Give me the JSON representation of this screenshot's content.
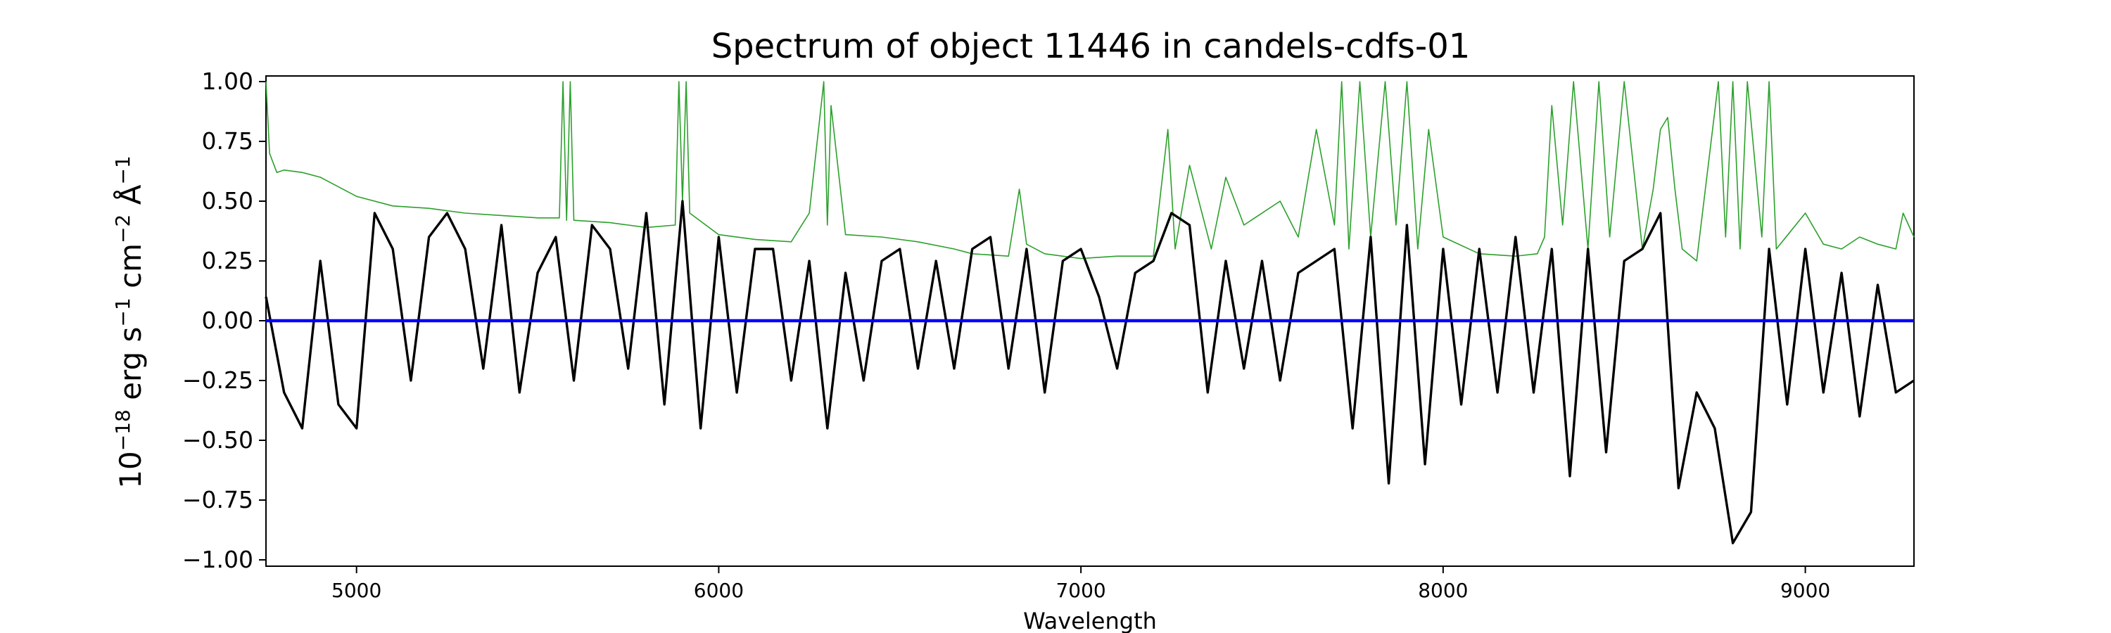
{
  "chart_data": {
    "type": "line",
    "title": "Spectrum of object 11446 in candels-cdfs-01",
    "xlabel": "Wavelength",
    "ylabel": {
      "base": "10",
      "exp1": "−18",
      "unit1": " erg s",
      "exp2": "−1",
      "unit2": " cm",
      "exp3": "−2",
      "unit3": " Å",
      "exp4": "−1"
    },
    "xlim": [
      4750,
      9300
    ],
    "ylim": [
      -1.0,
      1.0
    ],
    "x_ticks": [
      5000,
      6000,
      7000,
      8000,
      9000
    ],
    "x_tick_labels": [
      "5000",
      "6000",
      "7000",
      "8000",
      "9000"
    ],
    "y_ticks": [
      1.0,
      0.75,
      0.5,
      0.25,
      0.0,
      -0.25,
      -0.5,
      -0.75,
      -1.0
    ],
    "y_tick_labels": [
      "1.00",
      "0.75",
      "0.50",
      "0.25",
      "0.00",
      "−0.25",
      "−0.50",
      "−0.75",
      "−1.00"
    ],
    "grid": false,
    "colors": {
      "flux": "#000000",
      "error": "#2ca02c",
      "zero": "#0000ff"
    },
    "series": [
      {
        "key": "flux",
        "x": [
          4750,
          4800,
          4850,
          4900,
          4950,
          5000,
          5050,
          5100,
          5150,
          5200,
          5250,
          5300,
          5350,
          5400,
          5450,
          5500,
          5550,
          5600,
          5650,
          5700,
          5750,
          5800,
          5850,
          5900,
          5950,
          6000,
          6050,
          6100,
          6150,
          6200,
          6250,
          6300,
          6350,
          6400,
          6450,
          6500,
          6550,
          6600,
          6650,
          6700,
          6750,
          6800,
          6850,
          6900,
          6950,
          7000,
          7050,
          7100,
          7150,
          7200,
          7250,
          7300,
          7350,
          7400,
          7450,
          7500,
          7550,
          7600,
          7650,
          7700,
          7750,
          7800,
          7850,
          7900,
          7950,
          8000,
          8050,
          8100,
          8150,
          8200,
          8250,
          8300,
          8350,
          8400,
          8450,
          8500,
          8550,
          8600,
          8650,
          8700,
          8750,
          8800,
          8850,
          8900,
          8950,
          9000,
          9050,
          9100,
          9150,
          9200,
          9250,
          9300
        ],
        "y": [
          0.1,
          -0.3,
          -0.45,
          0.25,
          -0.35,
          -0.45,
          0.45,
          0.3,
          -0.25,
          0.35,
          0.45,
          0.3,
          -0.2,
          0.4,
          -0.3,
          0.2,
          0.35,
          -0.25,
          0.4,
          0.3,
          -0.2,
          0.45,
          -0.35,
          0.5,
          -0.45,
          0.35,
          -0.3,
          0.3,
          0.3,
          -0.25,
          0.25,
          -0.45,
          0.2,
          -0.25,
          0.25,
          0.3,
          -0.2,
          0.25,
          -0.2,
          0.3,
          0.35,
          -0.2,
          0.3,
          -0.3,
          0.25,
          0.3,
          0.1,
          -0.2,
          0.2,
          0.25,
          0.45,
          0.4,
          -0.3,
          0.25,
          -0.2,
          0.25,
          -0.25,
          0.2,
          0.25,
          0.3,
          -0.45,
          0.35,
          -0.68,
          0.4,
          -0.6,
          0.3,
          -0.35,
          0.3,
          -0.3,
          0.35,
          -0.3,
          0.3,
          -0.65,
          0.3,
          -0.55,
          0.25,
          0.3,
          0.45,
          -0.7,
          -0.3,
          -0.45,
          -0.93,
          -0.8,
          0.3,
          -0.35,
          0.3,
          -0.3,
          0.2,
          -0.4,
          0.15,
          -0.3,
          -0.25
        ]
      },
      {
        "key": "error",
        "x": [
          4750,
          4760,
          4780,
          4800,
          4850,
          4900,
          4950,
          5000,
          5100,
          5200,
          5300,
          5400,
          5500,
          5560,
          5570,
          5580,
          5590,
          5600,
          5700,
          5800,
          5880,
          5890,
          5900,
          5910,
          5920,
          6000,
          6100,
          6200,
          6250,
          6290,
          6300,
          6310,
          6350,
          6450,
          6550,
          6650,
          6700,
          6800,
          6830,
          6850,
          6900,
          7000,
          7100,
          7200,
          7240,
          7260,
          7300,
          7360,
          7400,
          7450,
          7550,
          7600,
          7650,
          7700,
          7720,
          7740,
          7770,
          7800,
          7840,
          7870,
          7900,
          7930,
          7960,
          8000,
          8100,
          8200,
          8260,
          8280,
          8300,
          8330,
          8360,
          8400,
          8430,
          8460,
          8500,
          8550,
          8580,
          8600,
          8620,
          8640,
          8660,
          8700,
          8760,
          8780,
          8800,
          8820,
          8840,
          8880,
          8900,
          8920,
          9000,
          9050,
          9100,
          9150,
          9200,
          9250,
          9270,
          9300
        ],
        "y": [
          1.0,
          0.7,
          0.62,
          0.63,
          0.62,
          0.6,
          0.56,
          0.52,
          0.48,
          0.47,
          0.45,
          0.44,
          0.43,
          0.43,
          1.0,
          0.42,
          1.0,
          0.42,
          0.41,
          0.39,
          0.4,
          1.0,
          0.5,
          1.0,
          0.45,
          0.36,
          0.34,
          0.33,
          0.45,
          1.0,
          0.4,
          0.9,
          0.36,
          0.35,
          0.33,
          0.3,
          0.28,
          0.27,
          0.55,
          0.32,
          0.28,
          0.26,
          0.27,
          0.27,
          0.8,
          0.3,
          0.65,
          0.3,
          0.6,
          0.4,
          0.5,
          0.35,
          0.8,
          0.4,
          1.0,
          0.3,
          1.0,
          0.35,
          1.0,
          0.4,
          1.0,
          0.3,
          0.8,
          0.35,
          0.28,
          0.27,
          0.28,
          0.35,
          0.9,
          0.4,
          1.0,
          0.3,
          1.0,
          0.35,
          1.0,
          0.3,
          0.55,
          0.8,
          0.85,
          0.55,
          0.3,
          0.25,
          1.0,
          0.35,
          1.0,
          0.3,
          1.0,
          0.35,
          1.0,
          0.3,
          0.45,
          0.32,
          0.3,
          0.35,
          0.32,
          0.3,
          0.45,
          0.35
        ]
      },
      {
        "key": "zero",
        "x": [
          4750,
          9300
        ],
        "y": [
          0.0,
          0.0
        ]
      }
    ]
  }
}
